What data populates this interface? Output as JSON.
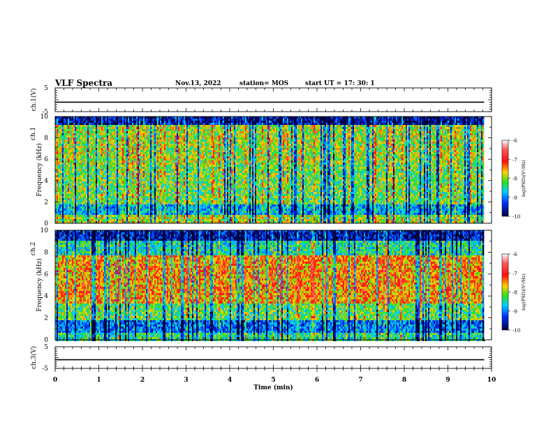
{
  "header": {
    "title": "VLF Spectra",
    "date": "Nov.13, 2022",
    "station": "station= MOS",
    "start": "start  UT  =   17: 30: 1"
  },
  "chart_data": [
    {
      "type": "line",
      "ylabel": "ch.1(V)",
      "x_range": [
        0,
        10
      ],
      "ylim": [
        -5,
        5
      ],
      "yticks": [
        "5",
        "-5"
      ],
      "series": [
        {
          "x": [
            0,
            9.83
          ],
          "values": [
            -1,
            -1
          ]
        }
      ]
    },
    {
      "type": "heatmap",
      "ylabel_top": "ch.1",
      "ylabel": "Frequency (kHz)",
      "ylim": [
        0,
        10
      ],
      "yticks": [
        "0",
        "2",
        "4",
        "6",
        "8",
        "10"
      ],
      "x_range": [
        0,
        10
      ],
      "data_end": 9.83,
      "colorbar": {
        "label": "log(PSD)(V²/Hz)",
        "range": [
          -10,
          -6
        ],
        "ticks": [
          "-6",
          "-7",
          "-8",
          "-9",
          "-10"
        ]
      }
    },
    {
      "type": "heatmap",
      "ylabel_top": "ch.2",
      "ylabel": "Frequency (kHz)",
      "ylim": [
        0,
        10
      ],
      "yticks": [
        "0",
        "2",
        "4",
        "6",
        "8",
        "10"
      ],
      "x_range": [
        0,
        10
      ],
      "data_end": 9.83,
      "colorbar": {
        "label": "log(PSD)(V²/Hz)",
        "range": [
          -10,
          -6
        ],
        "ticks": [
          "-6",
          "-7",
          "-8",
          "-9",
          "-10"
        ]
      }
    },
    {
      "type": "line",
      "ylabel": "ch.3(V)",
      "x_range": [
        0,
        10
      ],
      "ylim": [
        -5,
        5
      ],
      "yticks": [
        "5",
        "-5"
      ],
      "xlabel": "Time (min)",
      "xticks": [
        "0",
        "1",
        "2",
        "3",
        "4",
        "5",
        "6",
        "7",
        "8",
        "9",
        "10"
      ],
      "series": [
        {
          "x": [
            0,
            9.83
          ],
          "values": [
            -1,
            -1
          ]
        }
      ]
    }
  ]
}
